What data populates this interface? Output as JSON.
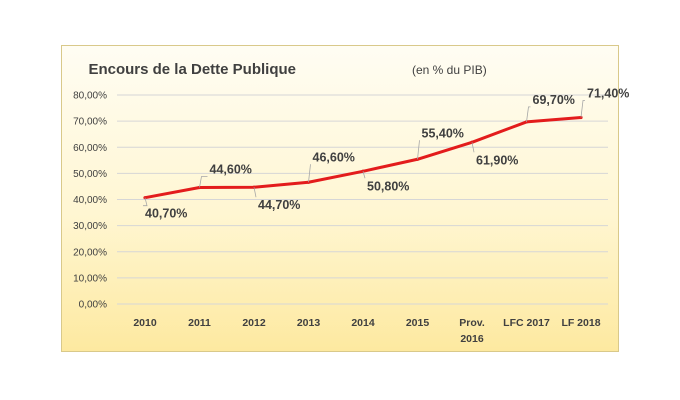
{
  "chart_data": {
    "type": "line",
    "title": "Encours de la Dette Publique",
    "subtitle": "(en % du PIB)",
    "categories": [
      [
        "2010"
      ],
      [
        "2011"
      ],
      [
        "2012"
      ],
      [
        "2013"
      ],
      [
        "2014"
      ],
      [
        "2015"
      ],
      [
        "Prov.",
        "2016"
      ],
      [
        "LFC 2017"
      ],
      [
        "LF 2018"
      ]
    ],
    "series": [
      {
        "values": [
          40.7,
          44.6,
          44.7,
          46.6,
          50.8,
          55.4,
          61.9,
          69.7,
          71.4
        ],
        "labels": [
          "40,70%",
          "44,60%",
          "44,70%",
          "46,60%",
          "50,80%",
          "55,40%",
          "61,90%",
          "69,70%",
          "71,40%"
        ],
        "color": "#e31c1c"
      }
    ],
    "ylim": [
      0,
      80
    ],
    "yticks": [
      "0,00%",
      "10,00%",
      "20,00%",
      "30,00%",
      "40,00%",
      "50,00%",
      "60,00%",
      "70,00%",
      "80,00%"
    ],
    "grid": true,
    "legend": "none"
  },
  "colors": {
    "line": "#e31c1c",
    "grid": "#d6d6d6",
    "text": "#404040"
  }
}
